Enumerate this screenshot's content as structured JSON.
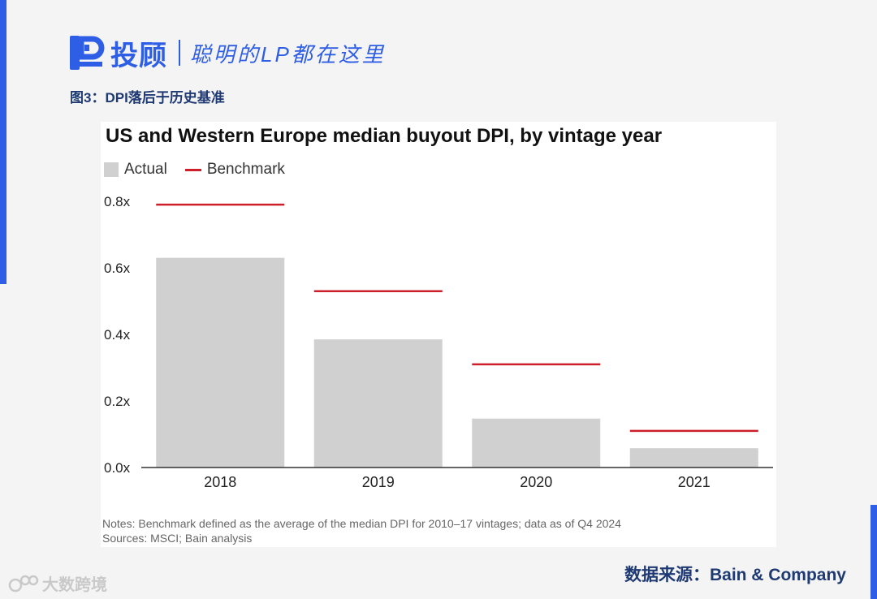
{
  "brand": {
    "name": "投顾",
    "slogan": "聪明的LP都在这里",
    "color": "#2f5ee6"
  },
  "figure": {
    "caption": "图3：DPI落后于历史基准"
  },
  "chart_data": {
    "type": "bar",
    "title": "US and Western Europe median buyout DPI, by vintage year",
    "categories": [
      "2018",
      "2019",
      "2020",
      "2021"
    ],
    "series": [
      {
        "name": "Actual",
        "kind": "bar",
        "color": "#d0d0d0",
        "values": [
          0.63,
          0.385,
          0.147,
          0.058
        ]
      },
      {
        "name": "Benchmark",
        "kind": "level-line",
        "color": "#cc1f2a",
        "values": [
          0.79,
          0.53,
          0.31,
          0.11
        ]
      }
    ],
    "yticks": [
      0.0,
      0.2,
      0.4,
      0.6,
      0.8
    ],
    "ytick_labels": [
      "0.0x",
      "0.2x",
      "0.4x",
      "0.6x",
      "0.8x"
    ],
    "ylim": [
      0,
      0.8
    ],
    "xlabel": "",
    "ylabel": "",
    "grid": false,
    "legend_position": "top-left"
  },
  "notes": {
    "line1": "Notes: Benchmark defined as the average of the median DPI for 2010–17 vintages; data as of Q4 2024",
    "line2": "Sources: MSCI; Bain analysis"
  },
  "source": {
    "text": "数据来源：Bain & Company"
  },
  "watermark": {
    "text": "大数跨境"
  }
}
